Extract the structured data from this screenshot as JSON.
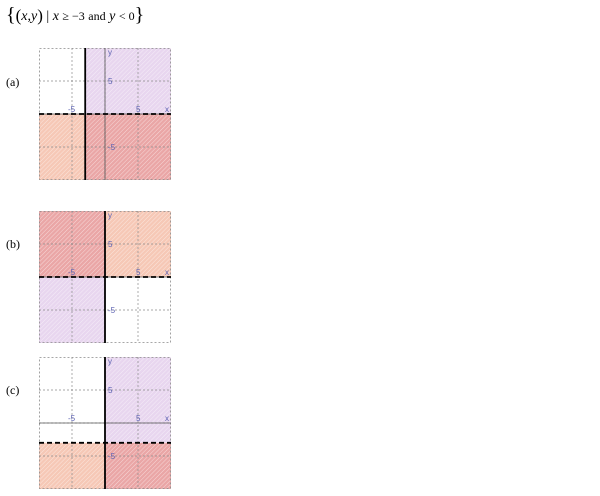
{
  "question": {
    "set_open": "{",
    "paren_open": "(",
    "var_x": "x",
    "comma": ",",
    "var_y": "y",
    "paren_close": ")",
    "bar": "|",
    "cond1_var": "x",
    "cond1_rel": "≥ −3",
    "connector": "and",
    "cond2_var": "y",
    "cond2_rel": "< 0",
    "set_close": "}"
  },
  "axis_labels": {
    "x": "x",
    "y": "y",
    "pos": "5",
    "neg": "-5"
  },
  "colors": {
    "pink": "#f6c8b6",
    "lavender": "#e8d6ef",
    "red": "#eaa6a6",
    "grid": "#8a8a8a"
  },
  "options": [
    {
      "label": "(a)",
      "graph": {
        "xrange": [
          -10,
          10
        ],
        "yrange": [
          -10,
          10
        ],
        "solid_vertical_x": -3,
        "dashed_horizontal_y": 0,
        "regions": [
          {
            "x": [
              -10,
              -3
            ],
            "y": [
              -10,
              0
            ],
            "fill": "pink"
          },
          {
            "x": [
              -3,
              10
            ],
            "y": [
              0,
              10
            ],
            "fill": "lavender"
          },
          {
            "x": [
              -3,
              10
            ],
            "y": [
              -10,
              0
            ],
            "fill": "red"
          }
        ]
      }
    },
    {
      "label": "(b)",
      "graph": {
        "xrange": [
          -10,
          10
        ],
        "yrange": [
          -10,
          10
        ],
        "solid_vertical_x": 0,
        "dashed_horizontal_y": 0,
        "regions": [
          {
            "x": [
              -10,
              0
            ],
            "y": [
              0,
              10
            ],
            "fill": "red"
          },
          {
            "x": [
              0,
              10
            ],
            "y": [
              0,
              10
            ],
            "fill": "pink"
          },
          {
            "x": [
              -10,
              0
            ],
            "y": [
              -10,
              0
            ],
            "fill": "lavender"
          }
        ]
      }
    },
    {
      "label": "(c)",
      "graph": {
        "xrange": [
          -10,
          10
        ],
        "yrange": [
          -10,
          10
        ],
        "solid_vertical_x": 0,
        "dashed_horizontal_y": -3,
        "regions": [
          {
            "x": [
              -10,
              0
            ],
            "y": [
              -10,
              -3
            ],
            "fill": "pink"
          },
          {
            "x": [
              0,
              10
            ],
            "y": [
              -3,
              10
            ],
            "fill": "lavender"
          },
          {
            "x": [
              0,
              10
            ],
            "y": [
              -10,
              -3
            ],
            "fill": "red"
          }
        ]
      }
    }
  ]
}
